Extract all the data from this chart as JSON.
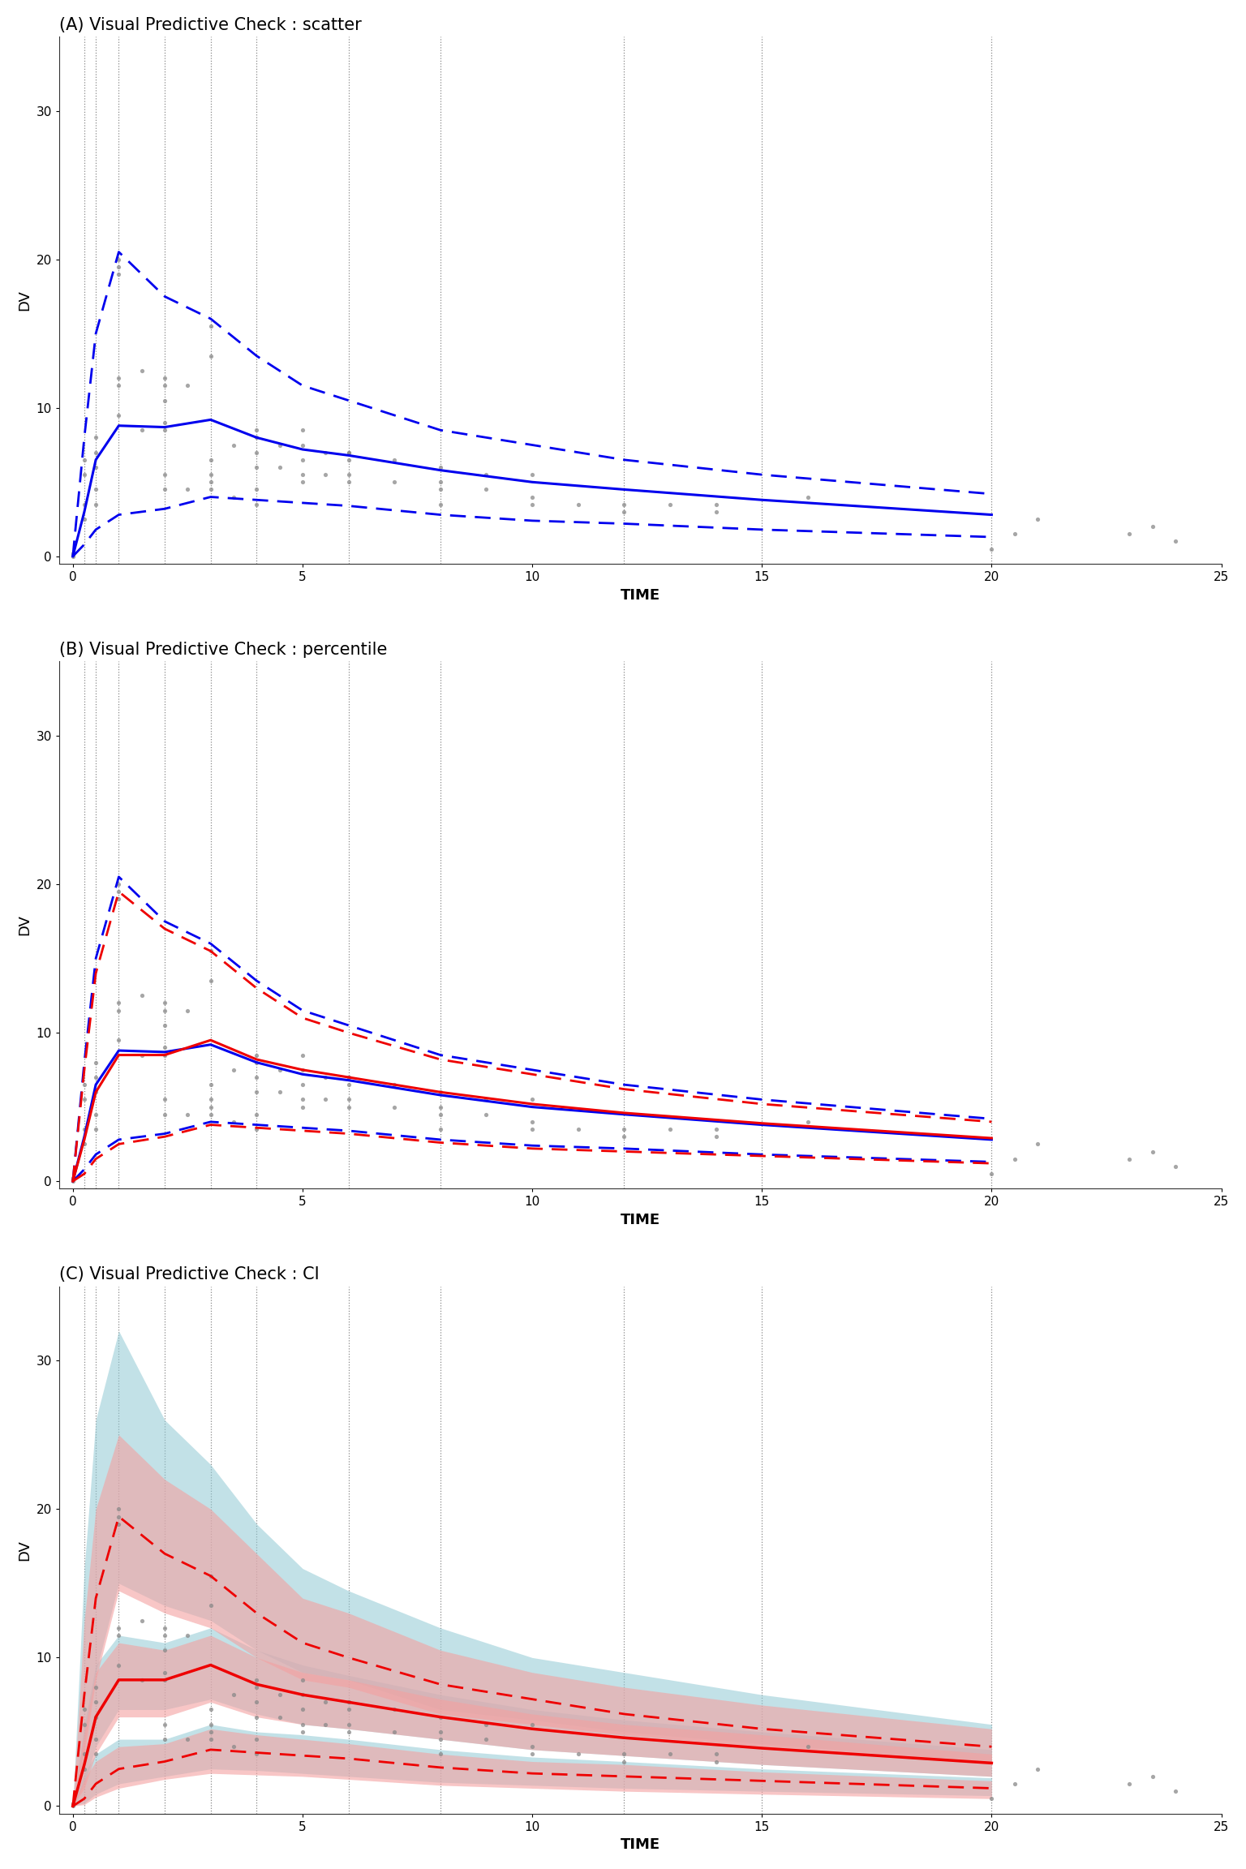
{
  "title_A": "(A) Visual Predictive Check : scatter",
  "title_B": "(B) Visual Predictive Check : percentile",
  "title_C": "(C) Visual Predictive Check : CI",
  "xlabel": "TIME",
  "ylabel": "DV",
  "xlim": [
    -0.3,
    25
  ],
  "ylim": [
    -0.5,
    35
  ],
  "yticks": [
    0,
    10,
    20,
    30
  ],
  "xticks": [
    0,
    5,
    10,
    15,
    20,
    25
  ],
  "vline_positions": [
    0.25,
    0.5,
    1.0,
    2.0,
    3.0,
    4.0,
    6.0,
    8.0,
    12.0,
    15.0,
    20.0
  ],
  "blue_color": "#0000EE",
  "red_color": "#EE0000",
  "lightblue_color": "#91C9D4",
  "lightpink_color": "#F4A0A0",
  "scatter_color": "#888888",
  "sim_time": [
    0.0,
    0.25,
    0.5,
    1.0,
    2.0,
    3.0,
    4.0,
    5.0,
    6.0,
    8.0,
    10.0,
    12.0,
    15.0,
    20.0
  ],
  "sim_p50": [
    0.0,
    3.0,
    6.5,
    8.8,
    8.7,
    9.2,
    8.0,
    7.2,
    6.8,
    5.8,
    5.0,
    4.5,
    3.8,
    2.8
  ],
  "sim_p10": [
    0.0,
    0.8,
    1.8,
    2.8,
    3.2,
    4.0,
    3.8,
    3.6,
    3.4,
    2.8,
    2.4,
    2.2,
    1.8,
    1.3
  ],
  "sim_p90": [
    0.0,
    8.0,
    15.0,
    20.5,
    17.5,
    16.0,
    13.5,
    11.5,
    10.5,
    8.5,
    7.5,
    6.5,
    5.5,
    4.2
  ],
  "obs_time": [
    0.0,
    0.25,
    0.5,
    1.0,
    2.0,
    3.0,
    4.0,
    5.0,
    6.0,
    8.0,
    10.0,
    12.0,
    15.0,
    20.0
  ],
  "obs_p50": [
    0.0,
    2.8,
    6.0,
    8.5,
    8.5,
    9.5,
    8.2,
    7.5,
    7.0,
    6.0,
    5.2,
    4.6,
    3.9,
    2.9
  ],
  "obs_p10": [
    0.0,
    0.5,
    1.5,
    2.5,
    3.0,
    3.8,
    3.6,
    3.4,
    3.2,
    2.6,
    2.2,
    2.0,
    1.7,
    1.2
  ],
  "obs_p90": [
    0.0,
    7.5,
    14.0,
    19.5,
    17.0,
    15.5,
    13.0,
    11.0,
    10.0,
    8.2,
    7.2,
    6.2,
    5.2,
    4.0
  ],
  "sim_p90_lo": [
    0.0,
    4.0,
    9.0,
    15.0,
    13.5,
    12.5,
    10.5,
    9.0,
    8.5,
    6.5,
    5.8,
    5.0,
    4.2,
    3.0
  ],
  "sim_p90_hi": [
    0.0,
    16.0,
    26.0,
    32.0,
    26.0,
    23.0,
    19.0,
    16.0,
    14.5,
    12.0,
    10.0,
    9.0,
    7.5,
    5.5
  ],
  "sim_p50_lo": [
    0.0,
    1.5,
    4.0,
    6.5,
    6.5,
    7.2,
    6.2,
    5.5,
    5.2,
    4.5,
    3.8,
    3.4,
    2.8,
    2.0
  ],
  "sim_p50_hi": [
    0.0,
    5.5,
    9.5,
    11.5,
    11.0,
    12.0,
    10.5,
    9.5,
    8.8,
    7.5,
    6.5,
    5.8,
    5.0,
    3.8
  ],
  "sim_p10_lo": [
    0.0,
    0.2,
    0.8,
    1.5,
    2.0,
    2.5,
    2.4,
    2.2,
    2.0,
    1.6,
    1.4,
    1.2,
    1.0,
    0.7
  ],
  "sim_p10_hi": [
    0.0,
    2.2,
    3.5,
    4.5,
    4.5,
    5.5,
    5.0,
    4.8,
    4.5,
    3.8,
    3.3,
    3.0,
    2.5,
    1.9
  ],
  "obs_p90_lo": [
    0.0,
    3.5,
    8.5,
    14.5,
    13.0,
    12.0,
    10.0,
    8.5,
    8.0,
    6.2,
    5.5,
    4.8,
    4.0,
    2.8
  ],
  "obs_p90_hi": [
    0.0,
    12.5,
    20.0,
    25.0,
    22.0,
    20.0,
    17.0,
    14.0,
    13.0,
    10.5,
    9.0,
    8.0,
    6.8,
    5.2
  ],
  "obs_p50_lo": [
    0.0,
    1.2,
    3.5,
    6.0,
    6.0,
    7.0,
    6.0,
    5.5,
    5.2,
    4.5,
    3.8,
    3.4,
    2.8,
    2.0
  ],
  "obs_p50_hi": [
    0.0,
    5.0,
    9.0,
    11.0,
    10.5,
    11.5,
    10.0,
    9.0,
    8.5,
    7.2,
    6.2,
    5.5,
    4.8,
    3.5
  ],
  "obs_p10_lo": [
    0.0,
    0.1,
    0.6,
    1.2,
    1.8,
    2.2,
    2.1,
    2.0,
    1.8,
    1.4,
    1.2,
    1.0,
    0.8,
    0.5
  ],
  "obs_p10_hi": [
    0.0,
    1.8,
    3.0,
    4.0,
    4.2,
    5.2,
    4.8,
    4.5,
    4.2,
    3.5,
    3.0,
    2.8,
    2.3,
    1.7
  ],
  "scatter_points_time": [
    0.0,
    0.0,
    0.0,
    0.25,
    0.25,
    0.25,
    0.25,
    0.5,
    0.5,
    0.5,
    0.5,
    0.5,
    1.0,
    1.0,
    1.0,
    1.0,
    1.0,
    1.0,
    1.5,
    1.5,
    2.0,
    2.0,
    2.0,
    2.0,
    2.0,
    2.0,
    2.0,
    2.5,
    2.5,
    3.0,
    3.0,
    3.0,
    3.0,
    3.0,
    3.0,
    3.5,
    3.5,
    4.0,
    4.0,
    4.0,
    4.0,
    4.0,
    4.0,
    4.5,
    4.5,
    5.0,
    5.0,
    5.0,
    5.0,
    5.0,
    5.5,
    5.5,
    6.0,
    6.0,
    6.0,
    6.0,
    6.0,
    7.0,
    7.0,
    8.0,
    8.0,
    8.0,
    8.0,
    9.0,
    9.0,
    10.0,
    10.0,
    10.0,
    11.0,
    12.0,
    12.0,
    13.0,
    14.0,
    14.0,
    16.0,
    20.0,
    20.5,
    21.0,
    23.0,
    23.5,
    24.0
  ],
  "scatter_points_dv": [
    0.0,
    0.2,
    0.1,
    5.5,
    3.5,
    6.5,
    2.5,
    7.0,
    4.5,
    6.0,
    3.5,
    8.0,
    19.0,
    20.0,
    19.5,
    11.5,
    12.0,
    9.5,
    8.5,
    12.5,
    8.5,
    10.5,
    11.5,
    12.0,
    4.5,
    5.5,
    9.0,
    4.5,
    11.5,
    4.5,
    5.0,
    15.5,
    13.5,
    6.5,
    5.5,
    7.5,
    4.0,
    8.0,
    8.5,
    7.0,
    6.0,
    3.5,
    4.5,
    6.0,
    7.5,
    7.5,
    6.5,
    5.5,
    5.0,
    8.5,
    5.5,
    7.0,
    7.0,
    6.5,
    5.5,
    5.0,
    7.0,
    6.5,
    5.0,
    4.5,
    5.0,
    3.5,
    6.0,
    4.5,
    5.5,
    4.0,
    5.5,
    3.5,
    3.5,
    3.0,
    3.5,
    3.5,
    3.5,
    3.0,
    4.0,
    0.5,
    1.5,
    2.5,
    1.5,
    2.0,
    1.0
  ]
}
